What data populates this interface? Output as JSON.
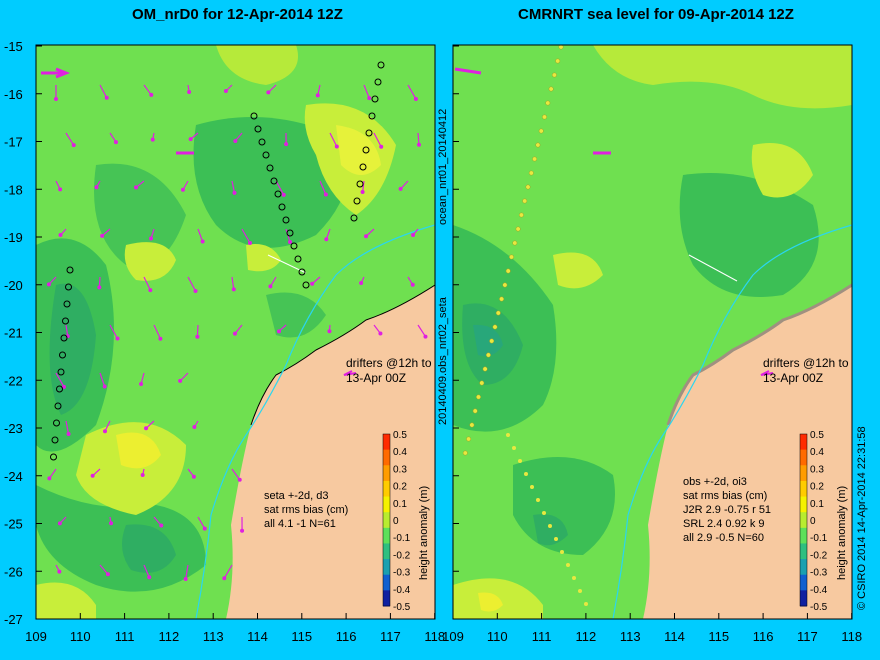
{
  "colors": {
    "background": "#00ccff",
    "land": "#f7c9a0",
    "sea_base": "#5ee05a",
    "drifter": "#e020e0",
    "track": "#2ad6f0"
  },
  "left_panel": {
    "title": "OM_nrD0 for 12-Apr-2014 12Z",
    "drifter_label_1": "drifters @12h to",
    "drifter_label_2": "13-Apr 00Z",
    "stats": [
      "seta +-2d, d3",
      "sat rms bias (cm)",
      "all 4.1 -1 N=61"
    ]
  },
  "right_panel": {
    "title": "CMRNRT sea level  for 09-Apr-2014 12Z",
    "drifter_label_1": "drifters @12h to",
    "drifter_label_2": "13-Apr 00Z",
    "stats": [
      "obs +-2d, oi3",
      "sat rms bias (cm)",
      "J2R   2.9 -0.75 r 51",
      "SRL    2.4 0.92 k 9",
      "all   2.9 -0.5 N=60"
    ]
  },
  "middle_labels": {
    "top": "ocean_nrt01_20140412",
    "bottom": "20140409.obs_nrt02_seta"
  },
  "right_edge_label": "© CSIRO 2014  14-Apr-2014 22:31:58",
  "axes": {
    "y_ticks": [
      "-15",
      "-16",
      "-17",
      "-18",
      "-19",
      "-20",
      "-21",
      "-22",
      "-23",
      "-24",
      "-25",
      "-26",
      "-27"
    ],
    "x_ticks": [
      "109",
      "110",
      "111",
      "112",
      "113",
      "114",
      "115",
      "116",
      "117",
      "118"
    ]
  },
  "colorbar": {
    "label": "height anomaly (m)",
    "ticks": [
      "0.5",
      "0.4",
      "0.3",
      "0.2",
      "0.1",
      "0",
      "-0.1",
      "-0.2",
      "-0.3",
      "-0.4",
      "-0.5"
    ]
  }
}
